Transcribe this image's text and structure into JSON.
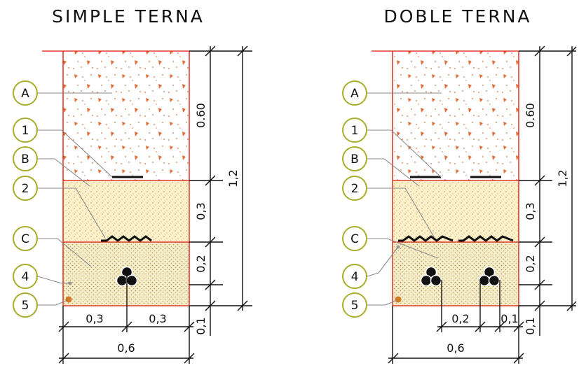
{
  "colors": {
    "accent_circle": "#a8ad2a",
    "trench_border": "#e23b2e",
    "fill_soil": "#e0703a",
    "fill_sand": "#f7e7b0",
    "fill_backfill": "#e7d7a0",
    "marker_dot": "#d9771d"
  },
  "left": {
    "title": "SIMPLE TERNA",
    "labels": [
      "A",
      "1",
      "B",
      "2",
      "C",
      "4",
      "5"
    ],
    "dims": {
      "h1": "0.60",
      "h2": "0,3",
      "h3": "0,2",
      "h4": "0,1",
      "total": "1,2",
      "w_left": "0,3",
      "w_right": "0,3",
      "w_total": "0,6"
    }
  },
  "right": {
    "title": "DOBLE TERNA",
    "labels": [
      "A",
      "1",
      "B",
      "2",
      "C",
      "4",
      "5"
    ],
    "dims": {
      "h1": "0.60",
      "h2": "0,3",
      "h3": "0,2",
      "h4": "0,1",
      "total": "1,2",
      "w_sep": "0,2",
      "w_side": "0,1",
      "w_total": "0,6"
    }
  }
}
